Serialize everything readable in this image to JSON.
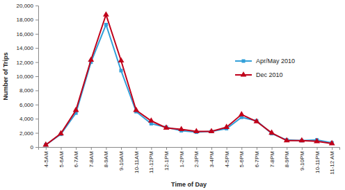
{
  "chart_data": {
    "type": "line",
    "x_label": "Time of Day",
    "y_label": "Number of Trips",
    "categories": [
      "4-5AM",
      "5-6AM",
      "6-7AM",
      "7-8AM",
      "8-9AM",
      "9-10AM",
      "10-11AM",
      "11-12PM",
      "12-1PM",
      "1-2PM",
      "2-3PM",
      "3-4PM",
      "4-5PM",
      "5-6PM",
      "6-7PM",
      "7-8PM",
      "8-9PM",
      "9-10PM",
      "10-11PM",
      "11-12 AM"
    ],
    "series": [
      {
        "name": "Apr/May 2010",
        "color": "#33a0d9",
        "marker": "square",
        "values": [
          300,
          1800,
          4800,
          12000,
          17300,
          10800,
          5000,
          3300,
          2800,
          2300,
          2100,
          2200,
          2600,
          4200,
          3700,
          1900,
          1000,
          900,
          1000,
          600
        ]
      },
      {
        "name": "Dec 2010",
        "color": "#c0001a",
        "marker": "triangle",
        "values": [
          300,
          1900,
          5200,
          12300,
          18700,
          12200,
          5200,
          3700,
          2700,
          2500,
          2200,
          2200,
          2800,
          4600,
          3600,
          2000,
          900,
          900,
          800,
          500
        ]
      }
    ],
    "ylim": [
      0,
      20000
    ],
    "yticks": [
      0,
      {
        "value": 2000,
        "label": "2,000"
      },
      {
        "value": 4000,
        "label": "4,000"
      },
      {
        "value": 6000,
        "label": "6,000"
      },
      {
        "value": 8000,
        "label": "8,000"
      },
      {
        "value": 10000,
        "label": "10,000"
      },
      {
        "value": 12000,
        "label": "12,000"
      },
      {
        "value": 14000,
        "label": "14,000"
      },
      {
        "value": 16000,
        "label": "16,000"
      },
      {
        "value": 18000,
        "label": "18,000"
      },
      {
        "value": 20000,
        "label": "20,000"
      }
    ],
    "grid": false,
    "legend": "right"
  }
}
